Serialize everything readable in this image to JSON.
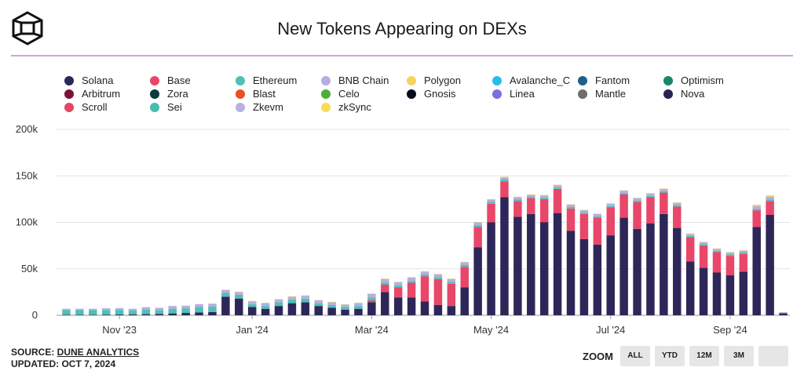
{
  "title": "New Tokens Appearing on DEXs",
  "footer": {
    "source_prefix": "SOURCE: ",
    "source_link": "DUNE ANALYTICS",
    "updated": "UPDATED: OCT 7, 2024"
  },
  "zoom": {
    "label": "ZOOM",
    "buttons": [
      "ALL",
      "YTD",
      "12M",
      "3M",
      ""
    ]
  },
  "legend": [
    {
      "name": "Solana",
      "color": "#2d2759"
    },
    {
      "name": "Base",
      "color": "#e8476a"
    },
    {
      "name": "Ethereum",
      "color": "#4fc0b5"
    },
    {
      "name": "BNB Chain",
      "color": "#b7aedf"
    },
    {
      "name": "Polygon",
      "color": "#f4d35e"
    },
    {
      "name": "Avalanche_C",
      "color": "#2bbde8"
    },
    {
      "name": "Fantom",
      "color": "#1f5f8b"
    },
    {
      "name": "Optimism",
      "color": "#17876d"
    },
    {
      "name": "Arbitrum",
      "color": "#7b1234"
    },
    {
      "name": "Zora",
      "color": "#0b3b3b"
    },
    {
      "name": "Blast",
      "color": "#e8521f"
    },
    {
      "name": "Celo",
      "color": "#4caf3a"
    },
    {
      "name": "Gnosis",
      "color": "#0b0b1e"
    },
    {
      "name": "Linea",
      "color": "#7b6ee0"
    },
    {
      "name": "Mantle",
      "color": "#6e6e6e"
    },
    {
      "name": "Nova",
      "color": "#2a2355"
    },
    {
      "name": "Scroll",
      "color": "#e34863"
    },
    {
      "name": "Sei",
      "color": "#43bfb0"
    },
    {
      "name": "Zkevm",
      "color": "#b9b1e2"
    },
    {
      "name": "zkSync",
      "color": "#f7dc55"
    }
  ],
  "chart_data": {
    "type": "bar",
    "stacked": true,
    "y_ticks": [
      "0",
      "50k",
      "100k",
      "150k",
      "200k"
    ],
    "ylim": [
      0,
      200000
    ],
    "x_tick_labels": [
      "Nov '23",
      "Jan '24",
      "Mar '24",
      "May '24",
      "Jul '24",
      "Sep '24"
    ],
    "x_tick_bar_index": [
      4,
      14,
      23,
      32,
      41,
      50
    ],
    "series_colors": {
      "Solana": "#2d2759",
      "Base": "#e8476a",
      "Ethereum": "#4fc0b5",
      "BNB Chain": "#b7aedf",
      "Polygon": "#f4d35e"
    },
    "series": [
      {
        "name": "Solana",
        "values": [
          500,
          500,
          500,
          700,
          800,
          1000,
          1200,
          1500,
          2000,
          2500,
          3000,
          3500,
          20000,
          18000,
          9000,
          7000,
          10000,
          13000,
          14000,
          10000,
          8000,
          6000,
          7000,
          14000,
          25000,
          19000,
          19000,
          15000,
          11000,
          10000,
          30000,
          73000,
          100000,
          127000,
          106000,
          109000,
          100000,
          110000,
          91000,
          82000,
          76000,
          86000,
          105000,
          93000,
          99000,
          109000,
          94000,
          58000,
          51000,
          46000,
          43000,
          47000,
          95000,
          108000,
          2000
        ]
      },
      {
        "name": "Base",
        "values": [
          0,
          0,
          0,
          0,
          0,
          0,
          0,
          0,
          0,
          0,
          0,
          0,
          0,
          0,
          0,
          0,
          0,
          0,
          0,
          0,
          0,
          0,
          0,
          2000,
          8000,
          11000,
          16000,
          27000,
          28000,
          24000,
          22000,
          22000,
          20000,
          17000,
          17000,
          17000,
          25000,
          26000,
          24000,
          27000,
          29000,
          30000,
          25000,
          29000,
          28000,
          23000,
          23000,
          26000,
          24000,
          22000,
          21000,
          19000,
          18000,
          15000,
          500
        ]
      },
      {
        "name": "Ethereum",
        "values": [
          5000,
          5000,
          5000,
          5000,
          5000,
          4000,
          5000,
          4000,
          5000,
          5000,
          6000,
          6000,
          4000,
          4000,
          3000,
          3000,
          4000,
          4000,
          4000,
          3000,
          3000,
          3000,
          3000,
          3000,
          2000,
          2000,
          2000,
          2000,
          2000,
          2000,
          2000,
          2000,
          2000,
          2000,
          1500,
          1500,
          1500,
          1500,
          1500,
          1500,
          1500,
          1500,
          1500,
          1500,
          1500,
          1500,
          1500,
          1500,
          1500,
          1500,
          1500,
          1500,
          1500,
          1500,
          300
        ]
      },
      {
        "name": "BNB Chain",
        "values": [
          1500,
          1500,
          1500,
          1800,
          1800,
          2000,
          2500,
          2500,
          3000,
          2800,
          3000,
          3000,
          3000,
          3000,
          3000,
          3000,
          3000,
          3000,
          3000,
          3000,
          3000,
          2500,
          3000,
          4000,
          4000,
          3500,
          3500,
          3000,
          3000,
          3000,
          3000,
          3000,
          2500,
          2500,
          2500,
          2000,
          2500,
          2500,
          2500,
          2500,
          2500,
          2500,
          2500,
          2500,
          2500,
          2500,
          2500,
          2000,
          2000,
          2000,
          2000,
          2000,
          3000,
          3000,
          500
        ]
      },
      {
        "name": "Polygon",
        "values": [
          0,
          0,
          0,
          0,
          0,
          0,
          0,
          0,
          0,
          0,
          0,
          0,
          500,
          500,
          500,
          500,
          500,
          500,
          500,
          500,
          500,
          500,
          500,
          500,
          500,
          500,
          500,
          500,
          500,
          500,
          500,
          500,
          500,
          500,
          500,
          500,
          500,
          500,
          500,
          500,
          500,
          500,
          500,
          500,
          500,
          500,
          500,
          500,
          500,
          500,
          500,
          500,
          1500,
          1500,
          0
        ]
      }
    ]
  }
}
